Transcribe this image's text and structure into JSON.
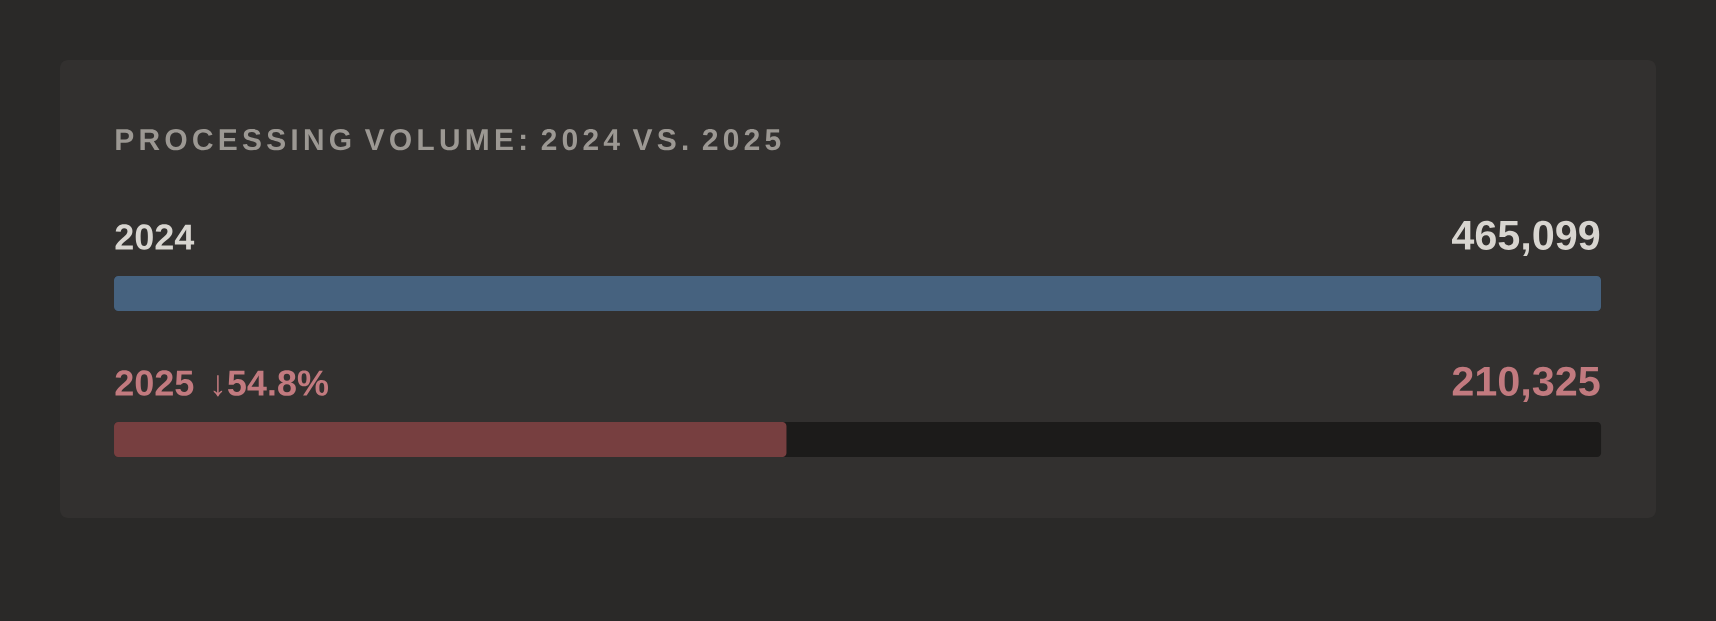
{
  "chart_data": {
    "type": "bar",
    "orientation": "horizontal",
    "title": "PROCESSING VOLUME: 2024 VS. 2025",
    "categories": [
      "2024",
      "2025"
    ],
    "values": [
      465099,
      210325
    ],
    "colors": [
      "#46627f",
      "#773f40"
    ],
    "value_labels": [
      "465,099",
      "210,325"
    ],
    "xlim": [
      0,
      465099
    ],
    "annotations": [
      "↓54.8%"
    ]
  }
}
